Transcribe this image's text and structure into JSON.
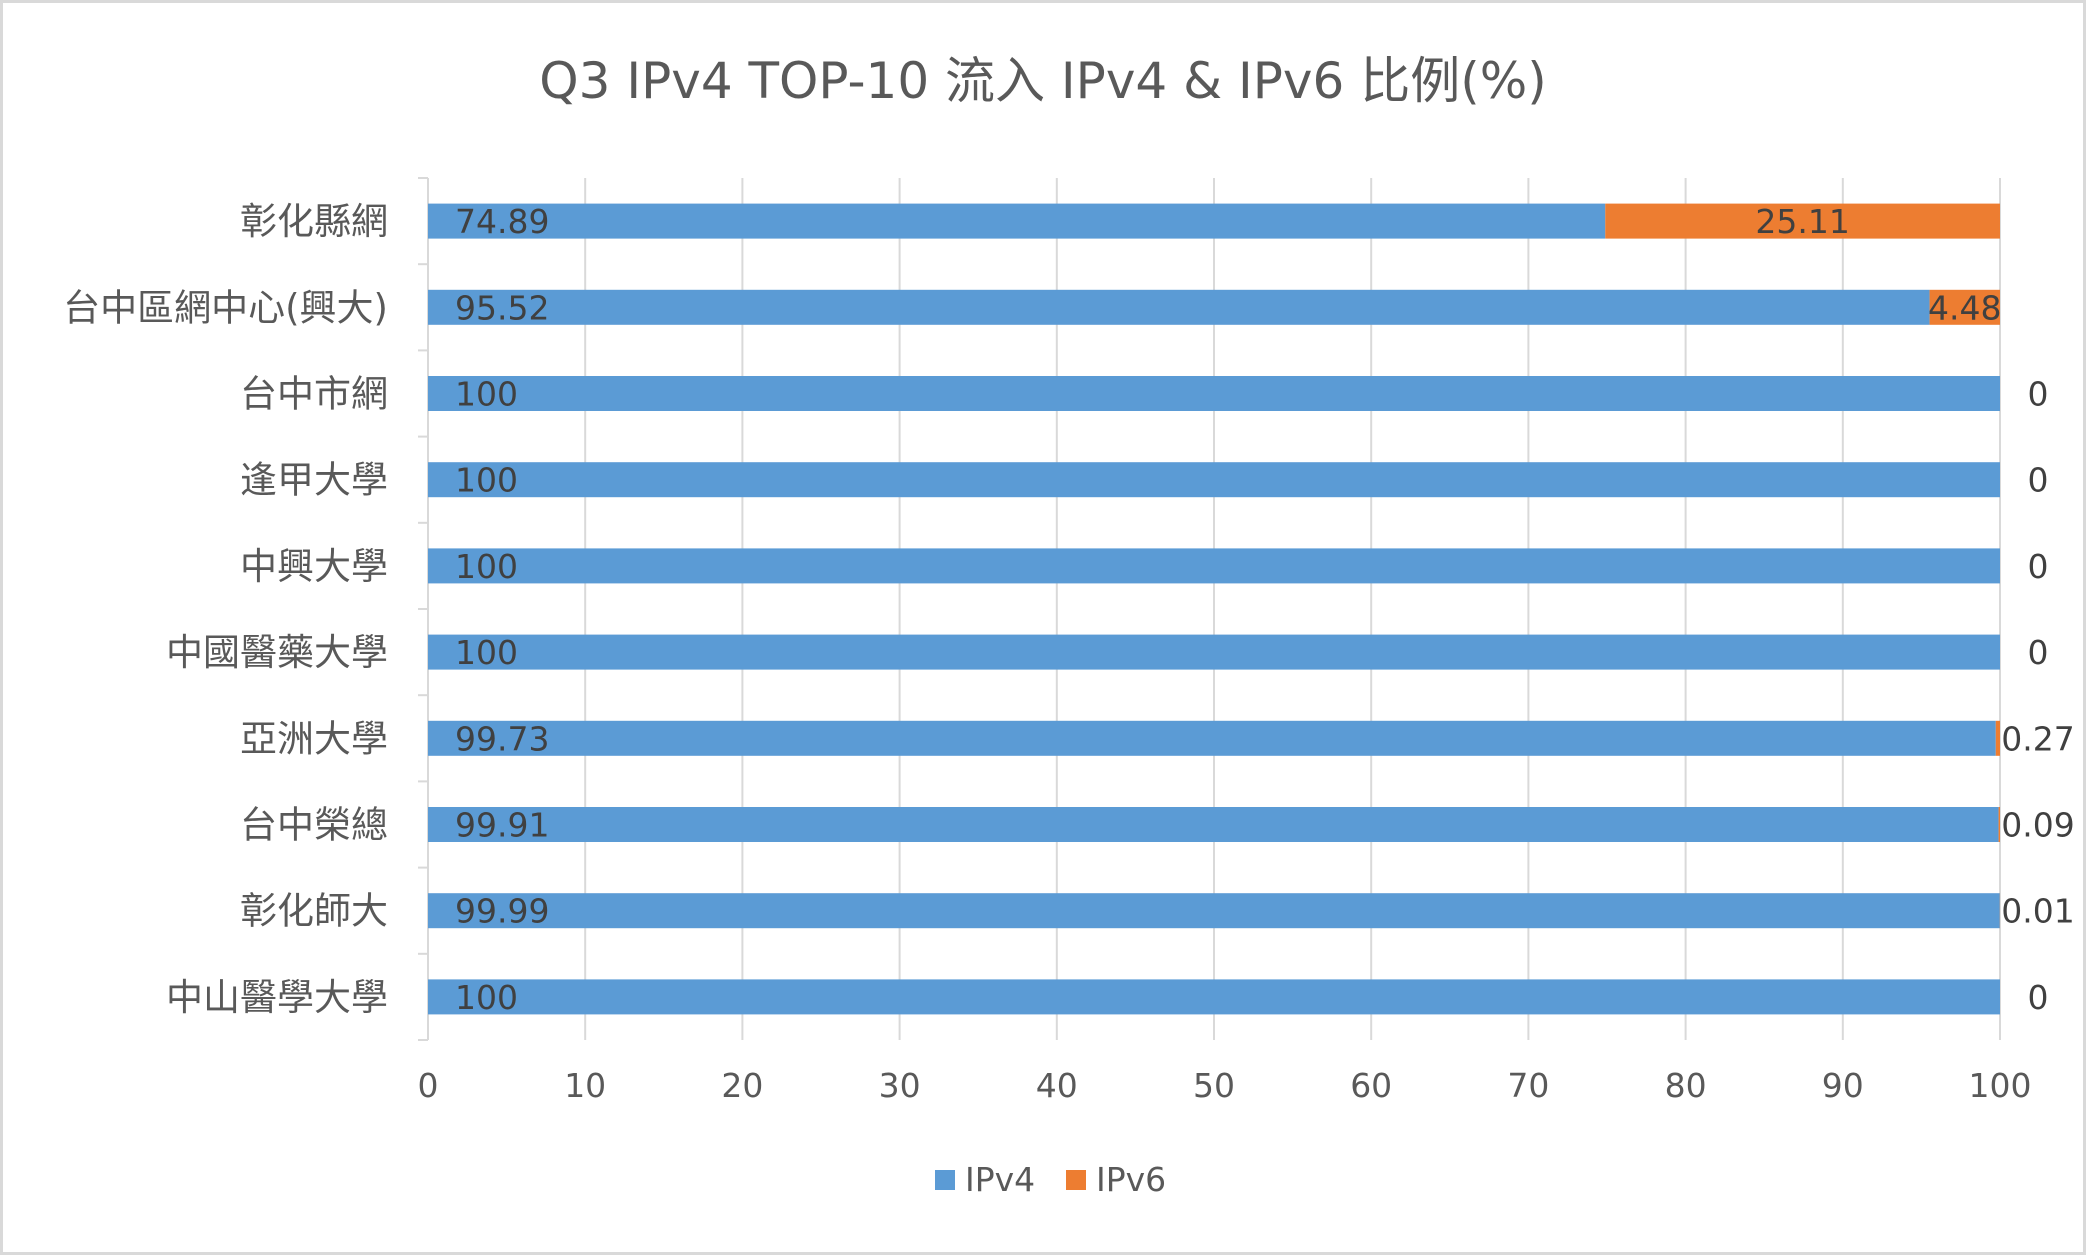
{
  "chart_data": {
    "type": "bar",
    "orientation": "horizontal",
    "stacked": true,
    "title": "Q3 IPv4 TOP-10 流入 IPv4 & IPv6 比例(%)",
    "categories": [
      "彰化縣網",
      "台中區網中心(興大)",
      "台中市網",
      "逢甲大學",
      "中興大學",
      "中國醫藥大學",
      "亞洲大學",
      "台中榮總",
      "彰化師大",
      "中山醫學大學"
    ],
    "series": [
      {
        "name": "IPv4",
        "color": "#5b9bd5",
        "values": [
          74.89,
          95.52,
          100,
          100,
          100,
          100,
          99.73,
          99.91,
          99.99,
          100
        ]
      },
      {
        "name": "IPv6",
        "color": "#ed7d31",
        "values": [
          25.11,
          4.48,
          0,
          0,
          0,
          0,
          0.27,
          0.09,
          0.01,
          0
        ]
      }
    ],
    "xlim": [
      0,
      100
    ],
    "xticks": [
      0,
      10,
      20,
      30,
      40,
      50,
      60,
      70,
      80,
      90,
      100
    ],
    "grid": true,
    "legend": "bottom"
  }
}
